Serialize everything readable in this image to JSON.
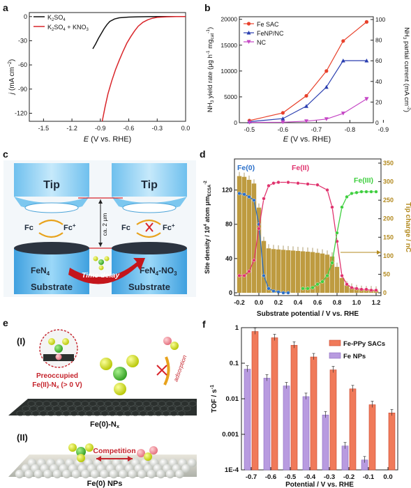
{
  "panels": {
    "a": {
      "label": "a",
      "ylabel_main": "j",
      "ylabel_unit": "(mA cm",
      "ylabel_exp": "−2",
      "ylabel_end": ")",
      "xlabel_e": "E",
      "xlabel_rest": " (V vs. RHE)",
      "xticks": [
        "-1.5",
        "-1.2",
        "-0.9",
        "-0.6",
        "-0.3",
        "0.0"
      ],
      "yticks": [
        "0",
        "-30",
        "-60",
        "-90",
        "-120"
      ],
      "legend": [
        {
          "pre": "K",
          "sub": "2",
          "post": "SO",
          "sub2": "4",
          "tail": "",
          "color": "#111111"
        },
        {
          "pre": "K",
          "sub": "2",
          "post": "SO",
          "sub2": "4",
          "tail": " + KNO",
          "sub3": "3",
          "color": "#d9252a"
        }
      ]
    },
    "b": {
      "label": "b",
      "ylabel_left": "NH",
      "ylabel_left_sub": "3",
      "ylabel_left_rest": " yield rate (μg h",
      "ylabel_left_exp": "-1",
      "ylabel_left_mg": " mg",
      "ylabel_left_cat": "cat",
      "ylabel_left_exp2": "-1",
      "ylabel_left_end": ")",
      "ylabel_right": "NH",
      "ylabel_right_sub": "3",
      "ylabel_right_rest": " partial current (mA cm",
      "ylabel_right_exp": "-2",
      "ylabel_right_end": ")",
      "xlabel_e": "E",
      "xlabel_rest": " (V vs. RHE)",
      "xticks": [
        "-0.5",
        "-0.6",
        "-0.7",
        "-0.8",
        "-0.9"
      ],
      "yticks_left": [
        "0",
        "5000",
        "10000",
        "15000",
        "20000"
      ],
      "yticks_right": [
        "0",
        "20",
        "40",
        "60",
        "80",
        "100"
      ],
      "legend": [
        "Fe SAC",
        "FeNP/NC",
        "NC"
      ]
    },
    "c": {
      "label": "c",
      "tip_left": "Tip",
      "tip_right": "Tip",
      "fc": "Fc",
      "fcplus": "Fc",
      "gap": "ca. 2 μm",
      "fen4": "FeN",
      "fen4_sub": "4",
      "fen4no3": "FeN",
      "fen4no3_sub": "4",
      "fen4no3_rest": "-NO",
      "fen4no3_sub2": "3",
      "substrate_left": "Substrate",
      "substrate_right": "Substrate",
      "time_delay": "Time delay"
    },
    "d": {
      "label": "d",
      "ylabel_left": "Site density / 10",
      "ylabel_left_exp": "4",
      "ylabel_left_rest": " atom μm",
      "ylabel_left_sub": "ECSA",
      "ylabel_left_exp2": "-2",
      "ylabel_right": "Tip charge / nC",
      "xlabel": "Substrate potential / V vs. RHE",
      "xticks": [
        "-0.2",
        "0.0",
        "0.2",
        "0.4",
        "0.6",
        "0.8",
        "1.0",
        "1.2"
      ],
      "yticks_left": [
        "0",
        "40",
        "80",
        "120"
      ],
      "yticks_right": [
        "0",
        "50",
        "100",
        "150",
        "200",
        "250",
        "300",
        "350"
      ],
      "fe0": "Fe(0)",
      "fe2": "Fe(II)",
      "fe3": "Fe(III)"
    },
    "e": {
      "label": "e",
      "roman1": "(I)",
      "roman2": "(II)",
      "preoccupied": "Preoccupied",
      "fe2nx_pre": "Fe(II)-N",
      "fe2nx_sub": "x",
      "fe2nx_post": " (> 0 V)",
      "adsorption": "adsorption",
      "fe0nx_pre": "Fe(0)-N",
      "fe0nx_sub": "x",
      "competition": "Competition",
      "fe0nps": "Fe(0) NPs"
    },
    "f": {
      "label": "f",
      "ylabel": "TOF / s",
      "ylabel_exp": "-1",
      "xlabel": "Potential / V vs. RHE",
      "xticks": [
        "-0.7",
        "-0.6",
        "-0.5",
        "-0.4",
        "-0.3",
        "-0.2",
        "-0.1",
        "0.0"
      ],
      "yticks": [
        "1",
        "0.1",
        "0.01",
        "0.001",
        "1E-4"
      ],
      "legend": [
        "Fe-PPy SACs",
        "Fe NPs"
      ]
    }
  },
  "colors": {
    "red": "#e8412b",
    "blue": "#2b3fb0",
    "magenta": "#c546c5",
    "bar_olive": "#b38a1f",
    "fe0_blue": "#2a6fc9",
    "fe2_pink": "#e0336e",
    "fe3_green": "#3fcf3f",
    "tof_red": "#f07a5a",
    "tof_purple": "#b89be0"
  },
  "chart_data": [
    {
      "type": "line",
      "id": "a",
      "xlabel": "E (V vs. RHE)",
      "ylabel": "j (mA cm−2)",
      "xlim": [
        -1.65,
        0.0
      ],
      "ylim": [
        -130,
        5
      ],
      "series": [
        {
          "name": "K2SO4",
          "x": [
            -0.98,
            -0.95,
            -0.92,
            -0.89,
            -0.86,
            -0.83,
            -0.8,
            -0.75,
            -0.7,
            -0.6,
            -0.5,
            -0.4,
            -0.3,
            -0.2,
            -0.1,
            0.0
          ],
          "y": [
            -40,
            -34,
            -27,
            -21,
            -15,
            -10,
            -6,
            -3,
            -1.5,
            -0.6,
            -0.3,
            -0.1,
            0,
            0,
            0,
            0
          ]
        },
        {
          "name": "K2SO4 + KNO3",
          "x": [
            -0.88,
            -0.85,
            -0.82,
            -0.78,
            -0.74,
            -0.7,
            -0.66,
            -0.62,
            -0.58,
            -0.54,
            -0.5,
            -0.45,
            -0.4,
            -0.35,
            -0.3,
            -0.2,
            -0.1,
            0.0
          ],
          "y": [
            -130,
            -112,
            -96,
            -80,
            -66,
            -54,
            -43,
            -33,
            -25,
            -18,
            -12,
            -7,
            -4,
            -2,
            -1,
            -0.3,
            0,
            0
          ]
        }
      ]
    },
    {
      "type": "line",
      "id": "b",
      "xlabel": "E (V vs. RHE)",
      "ylabel": "NH3 yield rate (μg h-1 mgcat-1)",
      "xlim": [
        -0.47,
        -0.87
      ],
      "ylim": [
        0,
        20500
      ],
      "series": [
        {
          "name": "Fe SAC",
          "x": [
            -0.5,
            -0.55,
            -0.6,
            -0.65,
            -0.7,
            -0.75,
            -0.8
          ],
          "y": [
            400,
            1900,
            5200,
            10000,
            15800,
            19500,
            19500
          ]
        },
        {
          "name": "FeNP/NC",
          "x": [
            -0.5,
            -0.55,
            -0.6,
            -0.65,
            -0.7,
            -0.75
          ],
          "y": [
            200,
            800,
            3200,
            6900,
            12000,
            12000
          ]
        },
        {
          "name": "NC",
          "x": [
            -0.5,
            -0.55,
            -0.6,
            -0.65,
            -0.7,
            -0.75,
            -0.8
          ],
          "y": [
            50,
            100,
            300,
            700,
            1800,
            4600,
            4600
          ]
        }
      ]
    },
    {
      "type": "bar",
      "id": "d",
      "xlabel": "Substrate potential / V vs. RHE",
      "ylabel": "Site density / 104 atom μmECSA-2",
      "xlim": [
        -0.25,
        1.25
      ],
      "ylim": [
        0,
        140
      ],
      "y2lim": [
        0,
        350
      ],
      "bars": {
        "x": [
          -0.2,
          -0.15,
          -0.1,
          -0.05,
          0.0,
          0.05,
          0.1,
          0.15,
          0.2,
          0.25,
          0.3,
          0.35,
          0.4,
          0.45,
          0.5,
          0.55,
          0.6,
          0.65,
          0.7,
          0.75,
          0.8,
          0.85,
          0.9,
          0.95,
          1.0,
          1.05,
          1.1,
          1.15,
          1.2
        ],
        "values": [
          315,
          313,
          305,
          295,
          230,
          140,
          120,
          118,
          117,
          116,
          115,
          114,
          113,
          112,
          111,
          110,
          108,
          106,
          103,
          98,
          70,
          40,
          20,
          14,
          10,
          8,
          7,
          7,
          6
        ]
      },
      "series": [
        {
          "name": "Fe(0)",
          "x": [
            -0.2,
            -0.15,
            -0.1,
            -0.05,
            0.0,
            0.05,
            0.1,
            0.15,
            0.2,
            0.25,
            0.3
          ],
          "y": [
            116,
            115,
            112,
            108,
            80,
            20,
            5,
            2,
            1,
            0,
            0
          ]
        },
        {
          "name": "Fe(II)",
          "x": [
            -0.2,
            -0.15,
            -0.1,
            -0.05,
            0.0,
            0.05,
            0.1,
            0.15,
            0.2,
            0.3,
            0.4,
            0.5,
            0.6,
            0.7,
            0.75,
            0.8,
            0.85,
            0.9,
            0.95,
            1.0,
            1.05,
            1.1,
            1.15,
            1.2
          ],
          "y": [
            20,
            20,
            25,
            38,
            75,
            110,
            125,
            128,
            129,
            129,
            128,
            127,
            126,
            120,
            100,
            60,
            20,
            10,
            6,
            5,
            4,
            4,
            3,
            3
          ]
        },
        {
          "name": "Fe(III)",
          "x": [
            0.45,
            0.5,
            0.55,
            0.6,
            0.65,
            0.7,
            0.75,
            0.8,
            0.85,
            0.9,
            0.95,
            1.0,
            1.05,
            1.1,
            1.15,
            1.2
          ],
          "y": [
            5,
            5,
            6,
            10,
            13,
            20,
            35,
            70,
            100,
            112,
            116,
            117,
            118,
            118,
            118,
            118
          ]
        }
      ]
    },
    {
      "type": "bar",
      "id": "f",
      "xlabel": "Potential / V vs. RHE",
      "ylabel": "TOF / s-1",
      "scale": "log",
      "ylim": [
        0.0001,
        1
      ],
      "categories": [
        "-0.7",
        "-0.6",
        "-0.5",
        "-0.4",
        "-0.3",
        "-0.2",
        "-0.1",
        "0.0"
      ],
      "series": [
        {
          "name": "Fe-PPy SACs",
          "values": [
            0.78,
            0.52,
            0.32,
            0.15,
            0.065,
            0.019,
            0.0068,
            0.004
          ]
        },
        {
          "name": "Fe NPs",
          "values": [
            0.068,
            0.038,
            0.023,
            0.0115,
            0.0035,
            0.00047,
            0.00019,
            null
          ]
        }
      ]
    }
  ]
}
